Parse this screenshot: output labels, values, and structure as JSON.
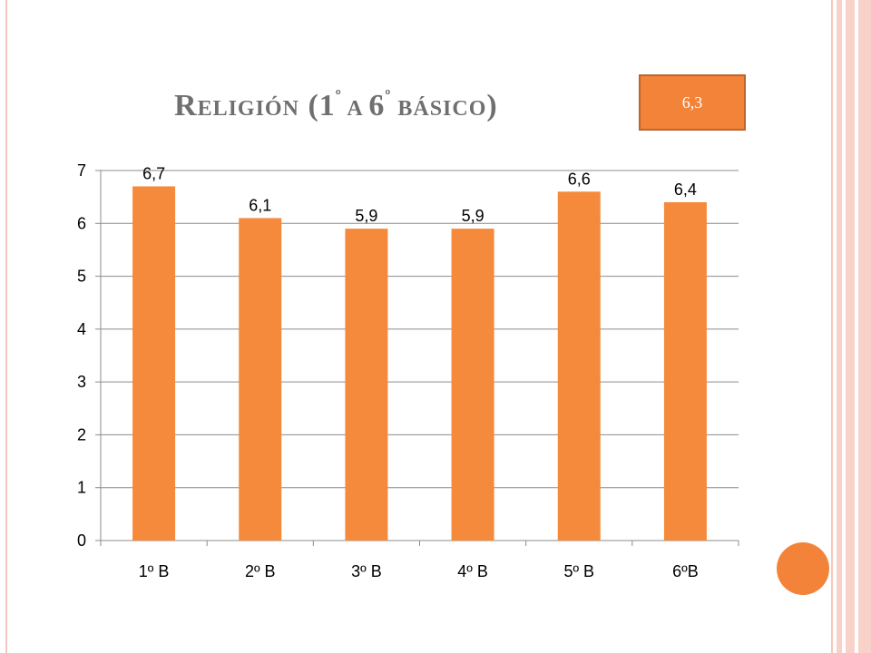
{
  "slide": {
    "title_cap": "R",
    "title_rest": "ELIGIÓN",
    "title_paren_open": " (1",
    "title_sup1": "º",
    "title_a": " A ",
    "title_six": "6",
    "title_sup2": "º",
    "title_basico": " BÁSICO",
    "title_paren_close": ")",
    "average_badge": "6,3"
  },
  "colors": {
    "bar": "#f58a3c",
    "accent": "#f4833a",
    "frame": "#f4c7bd"
  },
  "chart_data": {
    "type": "bar",
    "categories": [
      "1º B",
      "2º B",
      "3º B",
      "4º B",
      "5º B",
      "6ºB"
    ],
    "values": [
      6.7,
      6.1,
      5.9,
      5.9,
      6.6,
      6.4
    ],
    "data_labels": [
      "6,7",
      "6,1",
      "5,9",
      "5,9",
      "6,6",
      "6,4"
    ],
    "y_ticks": [
      "0",
      "1",
      "2",
      "3",
      "4",
      "5",
      "6",
      "7"
    ],
    "ylim": [
      0,
      7
    ],
    "grid": true,
    "legend": "none",
    "title": "",
    "xlabel": "",
    "ylabel": ""
  }
}
